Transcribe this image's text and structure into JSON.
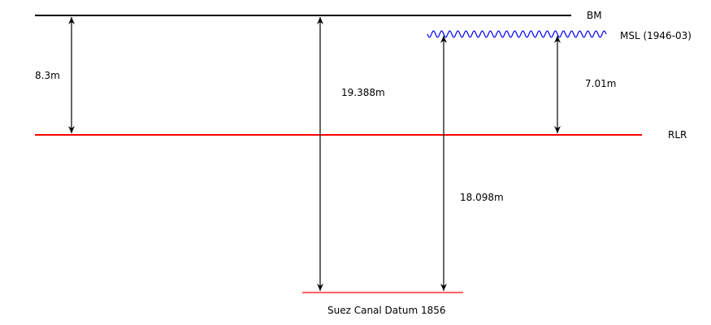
{
  "diagram": {
    "lines": {
      "bm": {
        "label": "BM",
        "color": "#000000"
      },
      "msl": {
        "label": "MSL (1946-03)",
        "color": "#0000ff"
      },
      "rlr": {
        "label": "RLR",
        "color": "#ff0000"
      },
      "suez": {
        "label": "Suez Canal Datum 1856",
        "color": "#ff0000"
      }
    },
    "measurements": {
      "bm_to_rlr": "8.3m",
      "bm_to_suez": "19.388m",
      "msl_to_rlr": "7.01m",
      "suez_to_msl": "18.098m"
    },
    "arrow_color": "#000000"
  }
}
